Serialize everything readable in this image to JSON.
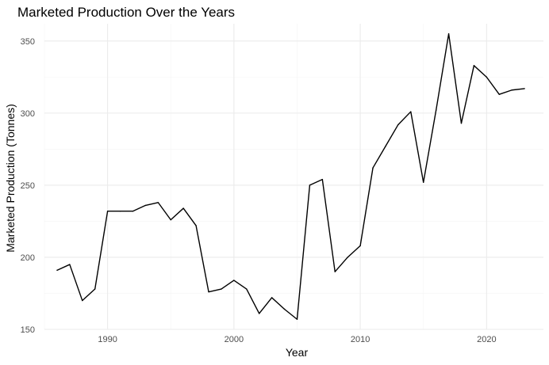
{
  "chart_data": {
    "type": "line",
    "title": "Marketed Production Over the Years",
    "xlabel": "Year",
    "ylabel": "Marketed Production (Tonnes)",
    "xlim": [
      1985,
      2024.5
    ],
    "ylim": [
      150,
      362
    ],
    "x_ticks": [
      1990,
      2000,
      2010,
      2020
    ],
    "x_minor_ticks": [
      1985,
      1995,
      2005,
      2015
    ],
    "y_ticks": [
      150,
      200,
      250,
      300,
      350
    ],
    "y_minor_ticks": [
      175,
      225,
      275,
      325
    ],
    "grid": true,
    "line_color": "#000000",
    "series": [
      {
        "x": [
          1986,
          1987,
          1988,
          1989,
          1990,
          1991,
          1992,
          1993,
          1994,
          1995,
          1996,
          1997,
          1998,
          1999,
          2000,
          2001,
          2002,
          2003,
          2004,
          2005,
          2006,
          2007,
          2008,
          2009,
          2010,
          2011,
          2012,
          2013,
          2014,
          2015,
          2016,
          2017,
          2018,
          2019,
          2020,
          2021,
          2022,
          2023
        ],
        "values": [
          191,
          195,
          170,
          178,
          232,
          232,
          232,
          236,
          238,
          226,
          234,
          222,
          176,
          178,
          184,
          178,
          161,
          172,
          164,
          157,
          250,
          254,
          190,
          200,
          208,
          262,
          277,
          292,
          301,
          252,
          302,
          355,
          293,
          333,
          325,
          313,
          316,
          317
        ]
      }
    ]
  }
}
